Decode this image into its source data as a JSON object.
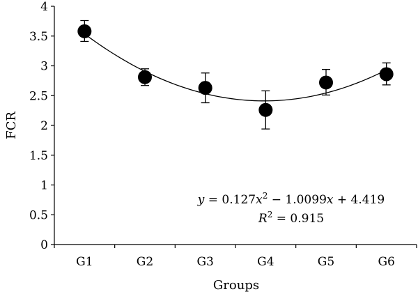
{
  "chart_data": {
    "type": "scatter",
    "title": "",
    "xlabel": "Groups",
    "ylabel": "FCR",
    "categories": [
      "G1",
      "G2",
      "G3",
      "G4",
      "G5",
      "G6"
    ],
    "ylim": [
      0,
      4
    ],
    "yticks": [
      "0",
      "0.5",
      "1",
      "1.5",
      "2",
      "2.5",
      "3",
      "3.5",
      "4"
    ],
    "grid": false,
    "series": [
      {
        "values": [
          3.58,
          2.81,
          2.63,
          2.26,
          2.72,
          2.86
        ],
        "error_low": [
          3.41,
          2.67,
          2.38,
          1.94,
          2.51,
          2.68
        ],
        "error_high": [
          3.76,
          2.95,
          2.88,
          2.58,
          2.94,
          3.05
        ]
      }
    ],
    "trendline": {
      "type": "polynomial",
      "order": 2,
      "coefficients": [
        0.127,
        -1.0099,
        4.419
      ],
      "equation_parts": {
        "y": "y",
        "eq_mid": " = 0.127",
        "x1": "x",
        "exp": "2",
        "mid2": " − 1.0099",
        "x2": "x",
        "end": " + 4.419"
      },
      "r2_parts": {
        "R": "R",
        "exp": "2",
        "val": " = 0.915"
      }
    }
  }
}
